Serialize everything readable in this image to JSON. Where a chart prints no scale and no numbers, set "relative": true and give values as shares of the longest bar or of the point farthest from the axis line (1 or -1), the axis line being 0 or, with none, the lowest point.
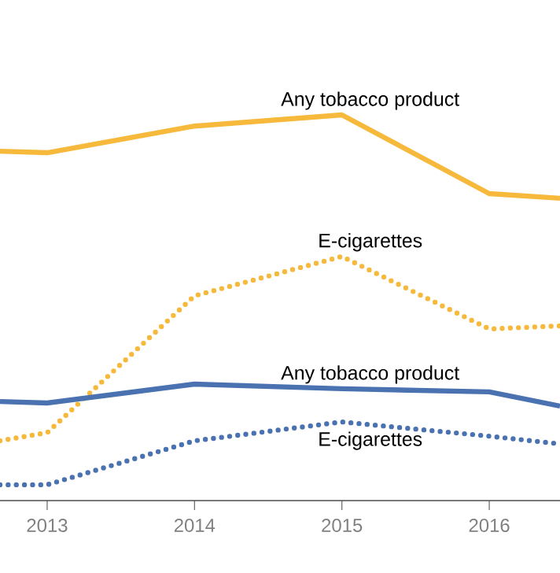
{
  "chart_data": {
    "type": "line",
    "relative": true,
    "x": [
      2012.68,
      2013,
      2014,
      2015,
      2016,
      2016.48
    ],
    "xlim": [
      2012.68,
      2016.48
    ],
    "xticks": [
      2013,
      2014,
      2015,
      2016
    ],
    "marker": "none",
    "series": [
      {
        "name": "Any tobacco product",
        "color": "#f6b93b",
        "line_style": "solid",
        "values": [
          0.906,
          0.902,
          0.971,
          1,
          0.796,
          0.784
        ]
      },
      {
        "name": "E-cigarettes",
        "color": "#f6b93b",
        "line_style": "dotted",
        "values": [
          0.155,
          0.176,
          0.531,
          0.633,
          0.445,
          0.453
        ]
      },
      {
        "name": "Any tobacco product",
        "color": "#4a72b0",
        "line_style": "solid",
        "values": [
          0.257,
          0.253,
          0.302,
          0.29,
          0.282,
          0.245
        ]
      },
      {
        "name": "E-cigarettes",
        "color": "#4a72b0",
        "line_style": "dotted",
        "values": [
          0.041,
          0.041,
          0.155,
          0.204,
          0.167,
          0.147
        ]
      }
    ]
  }
}
